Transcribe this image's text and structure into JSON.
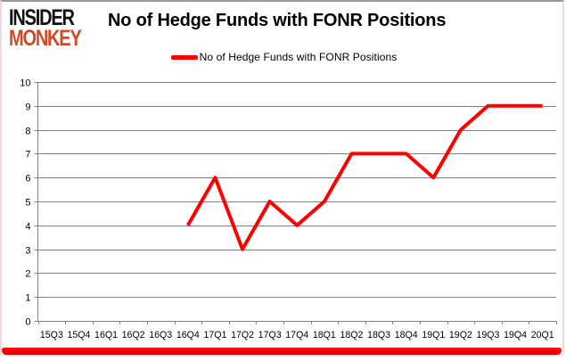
{
  "branding": {
    "line1": "INSIDER",
    "line2": "MONKEY",
    "line1_color": "#111111",
    "line2_color": "#d14a28"
  },
  "header": {
    "title": "No of Hedge Funds with FONR Positions"
  },
  "legend": {
    "label": "No of Hedge Funds with FONR Positions",
    "swatch_color": "#ff0000"
  },
  "chart_data": {
    "type": "line",
    "title": "No of Hedge Funds with FONR Positions",
    "categories": [
      "15Q3",
      "15Q4",
      "16Q1",
      "16Q2",
      "16Q3",
      "16Q4",
      "17Q1",
      "17Q2",
      "17Q3",
      "17Q4",
      "18Q1",
      "18Q2",
      "18Q3",
      "18Q4",
      "19Q1",
      "19Q2",
      "19Q3",
      "19Q4",
      "20Q1"
    ],
    "series": [
      {
        "name": "No of Hedge Funds with FONR Positions",
        "color": "#ff0000",
        "values": [
          null,
          null,
          null,
          null,
          null,
          4,
          6,
          3,
          5,
          4,
          5,
          7,
          7,
          7,
          6,
          8,
          9,
          9,
          9
        ]
      }
    ],
    "ylim": [
      0,
      10
    ],
    "ytick_interval": 1,
    "grid": true,
    "legend_position": "top-center",
    "xlabel": "",
    "ylabel": "",
    "styles": {
      "gridline_color": "#808080",
      "axis_color": "#808080",
      "tick_label_color": "#000000",
      "plot_background": "#ffffff",
      "line_width": 4
    }
  }
}
